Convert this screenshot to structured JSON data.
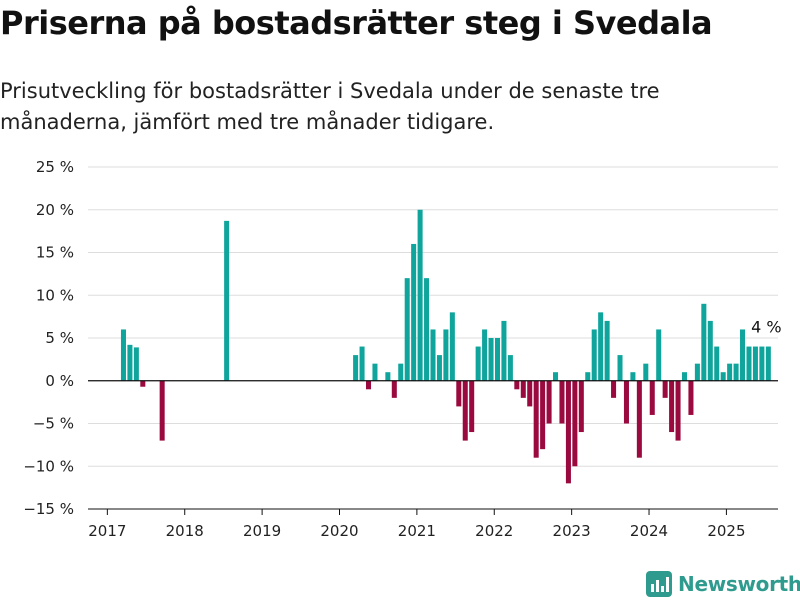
{
  "title": "Priserna på bostadsrätter steg i Svedala",
  "subtitle": "Prisutveckling för bostadsrätter i Svedala under de senaste tre månaderna, jämfört med tre månader tidigare.",
  "brand": "Newsworthy",
  "colors": {
    "positive": "#0fa59d",
    "negative": "#9b0a3f",
    "grid": "#dddddd",
    "zero_line": "#111111",
    "brand": "#2f9b8e"
  },
  "chart_data": {
    "type": "bar",
    "ylim": [
      -15,
      25
    ],
    "yticks": [
      -15,
      -10,
      -5,
      0,
      5,
      10,
      15,
      20,
      25
    ],
    "ytick_labels": [
      "−15 %",
      "−10 %",
      "−5 %",
      "0 %",
      "5 %",
      "10 %",
      "15 %",
      "20 %",
      "25 %"
    ],
    "xlim": [
      "2016-10",
      "2025-09"
    ],
    "xticks": [
      "2017",
      "2018",
      "2019",
      "2020",
      "2021",
      "2022",
      "2023",
      "2024",
      "2025"
    ],
    "annotation": {
      "label": "4 %",
      "date": "2025-07"
    },
    "series": [
      {
        "x": [
          "2017-03",
          "2017-04",
          "2017-05",
          "2017-06",
          "2017-09",
          "2018-07",
          "2020-03",
          "2020-04",
          "2020-05",
          "2020-06",
          "2020-08",
          "2020-09",
          "2020-10",
          "2020-11",
          "2020-12",
          "2021-01",
          "2021-02",
          "2021-03",
          "2021-04",
          "2021-05",
          "2021-06",
          "2021-07",
          "2021-08",
          "2021-09",
          "2021-10",
          "2021-11",
          "2021-12",
          "2022-01",
          "2022-02",
          "2022-03",
          "2022-04",
          "2022-05",
          "2022-06",
          "2022-07",
          "2022-08",
          "2022-09",
          "2022-10",
          "2022-11",
          "2022-12",
          "2023-01",
          "2023-02",
          "2023-03",
          "2023-04",
          "2023-05",
          "2023-06",
          "2023-07",
          "2023-08",
          "2023-09",
          "2023-10",
          "2023-11",
          "2023-12",
          "2024-01",
          "2024-02",
          "2024-03",
          "2024-04",
          "2024-05",
          "2024-06",
          "2024-07",
          "2024-08",
          "2024-09",
          "2024-10",
          "2024-11",
          "2024-12",
          "2025-01",
          "2025-02",
          "2025-03",
          "2025-04",
          "2025-05",
          "2025-06",
          "2025-07"
        ],
        "values": [
          6,
          4.2,
          3.9,
          -0.7,
          -7,
          18.7,
          3,
          4,
          -1,
          2,
          1,
          -2,
          2,
          12,
          16,
          20,
          12,
          6,
          3,
          6,
          8,
          -3,
          -7,
          -6,
          4,
          6,
          5,
          5,
          7,
          3,
          -1,
          -2,
          -3,
          -9,
          -8,
          -5,
          1,
          -5,
          -12,
          -10,
          -6,
          1,
          6,
          8,
          7,
          -2,
          3,
          -5,
          1,
          -9,
          2,
          -4,
          6,
          -2,
          -6,
          -7,
          1,
          -4,
          2,
          9,
          7,
          4,
          1,
          2,
          2,
          6,
          4,
          4,
          4,
          4
        ]
      }
    ]
  }
}
